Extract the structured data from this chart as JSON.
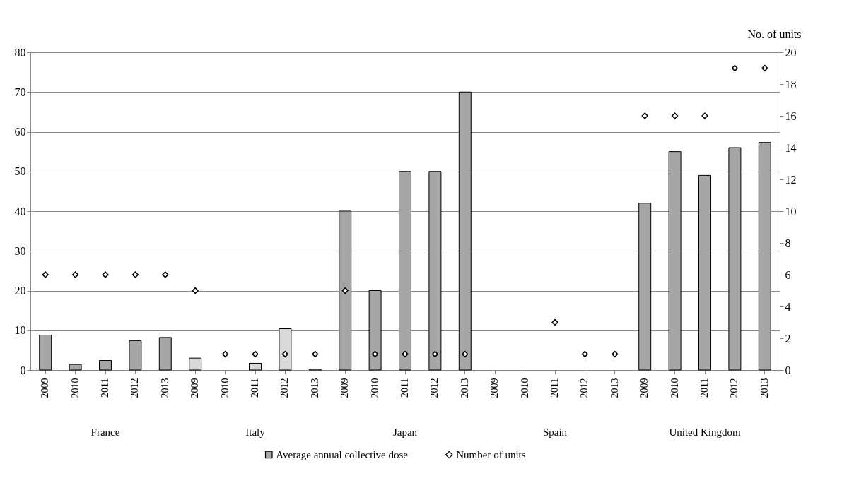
{
  "chart_data": {
    "type": "bar",
    "categories": [
      "2009",
      "2010",
      "2011",
      "2012",
      "2013",
      "2009",
      "2010",
      "2011",
      "2012",
      "2013",
      "2009",
      "2010",
      "2011",
      "2012",
      "2013",
      "2009",
      "2010",
      "2011",
      "2012",
      "2013",
      "2009",
      "2010",
      "2011",
      "2012",
      "2013"
    ],
    "series": [
      {
        "name": "Average annual collective dose",
        "color": "#a6a6a6",
        "colors": [
          "#a6a6a6",
          "#a6a6a6",
          "#a6a6a6",
          "#a6a6a6",
          "#a6a6a6",
          "#d9d9d9",
          "#d9d9d9",
          "#d9d9d9",
          "#d9d9d9",
          "#d9d9d9",
          "#a6a6a6",
          "#a6a6a6",
          "#a6a6a6",
          "#a6a6a6",
          "#a6a6a6",
          "#a6a6a6",
          "#a6a6a6",
          "#a6a6a6",
          "#a6a6a6",
          "#a6a6a6",
          "#a6a6a6",
          "#a6a6a6",
          "#a6a6a6",
          "#a6a6a6",
          "#a6a6a6"
        ],
        "values": [
          8.8,
          1.4,
          2.4,
          7.4,
          8.2,
          3.0,
          null,
          1.7,
          10.4,
          0.2,
          40,
          20,
          50,
          50,
          70,
          null,
          null,
          null,
          null,
          null,
          42,
          55,
          49,
          56,
          57.3
        ]
      },
      {
        "name": "Number of units",
        "type": "scatter",
        "axis": "y2",
        "color": "#000000",
        "values": [
          6,
          6,
          6,
          6,
          6,
          5,
          1,
          1,
          1,
          1,
          5,
          1,
          1,
          1,
          1,
          null,
          null,
          3,
          1,
          1,
          16,
          16,
          16,
          19,
          19
        ]
      }
    ],
    "annotations": [
      "France",
      "Italy",
      "Japan",
      "Spain",
      "United Kingdom"
    ],
    "y2label": "No. of units",
    "ylim": [
      0,
      80
    ],
    "yticks": [
      0,
      10,
      20,
      30,
      40,
      50,
      60,
      70,
      80
    ],
    "y2lim": [
      0,
      20
    ],
    "y2ticks": [
      0,
      2,
      4,
      6,
      8,
      10,
      12,
      14,
      16,
      18,
      20
    ],
    "grid": "y",
    "legend": "bottom",
    "marker": "diamond"
  }
}
